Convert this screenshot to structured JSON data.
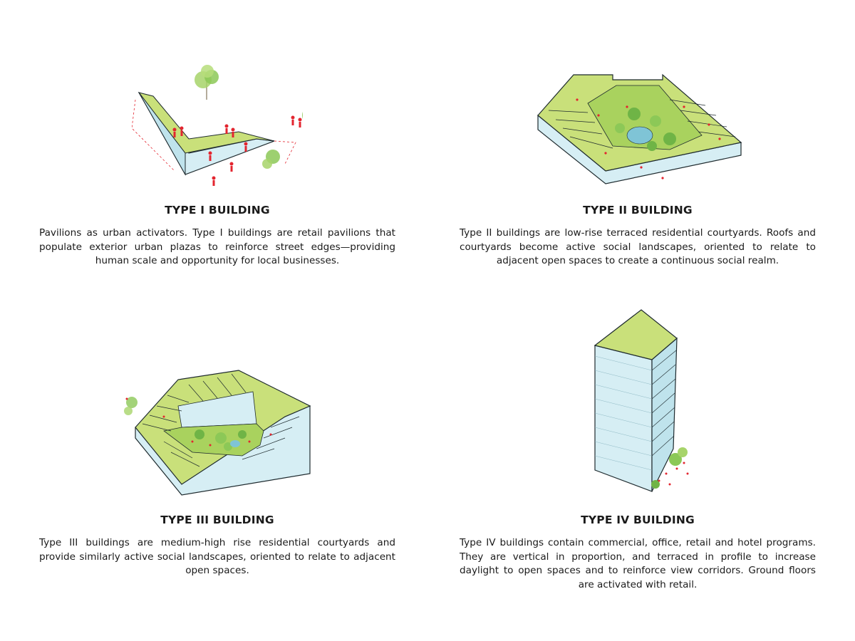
{
  "panels": [
    {
      "title": "TYPE I BUILDING",
      "description": "Pavilions as urban activators. Type I buildings are retail pavilions that populate exterior urban plazas to reinforce street edges—providing human scale and opportunity for local businesses."
    },
    {
      "title": "TYPE II BUILDING",
      "description": "Type II buildings are low-rise terraced residential courtyards. Roofs and courtyards become active social landscapes, oriented to relate to adjacent open spaces to create a continuous social realm."
    },
    {
      "title": "TYPE III BUILDING",
      "description": "Type III buildings are medium-high rise residential courtyards and provide similarly active social landscapes, oriented to relate to adjacent open spaces."
    },
    {
      "title": "TYPE IV BUILDING",
      "description": "Type IV buildings contain commercial, office, retail and hotel programs. They are vertical in proportion, and terraced in profile to increase daylight to open spaces and to reinforce view corridors. Ground floors are activated with retail."
    }
  ],
  "colors": {
    "roof_green": "#c9e07a",
    "facade_blue": "#d6eef4",
    "outline": "#1e2a2e",
    "people_red": "#e3252f",
    "tree_green": "#7cbf4a"
  }
}
